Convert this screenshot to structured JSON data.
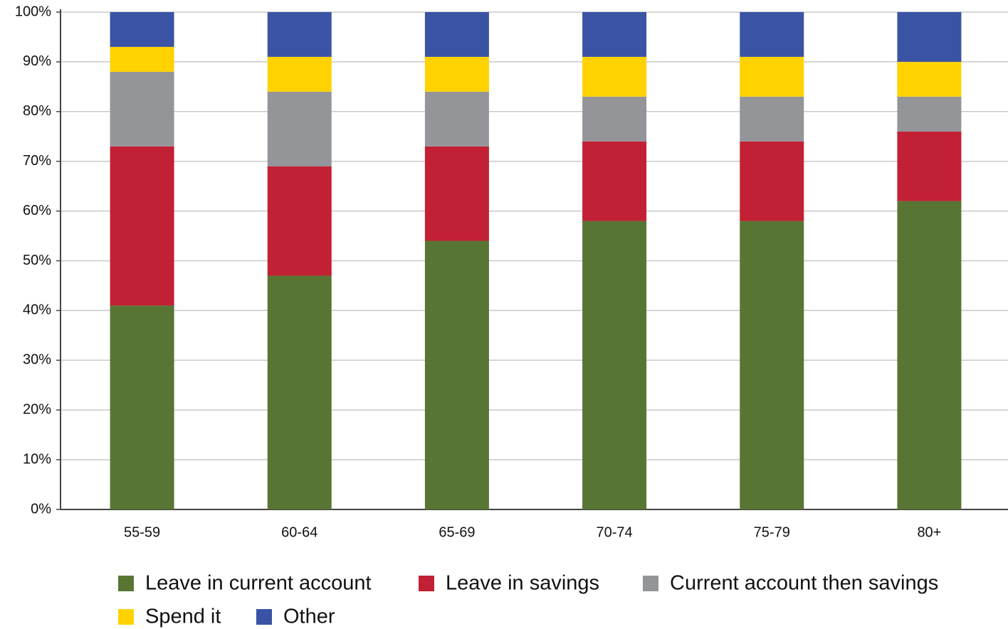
{
  "chart_data": {
    "type": "stacked_bar",
    "categories": [
      "55-59",
      "60-64",
      "65-69",
      "70-74",
      "75-79",
      "80+"
    ],
    "series": [
      {
        "name": "Leave in current account",
        "color": "#587533",
        "values": [
          41,
          47,
          54,
          58,
          58,
          62
        ]
      },
      {
        "name": "Leave in savings",
        "color": "#c22034",
        "values": [
          32,
          22,
          19,
          16,
          16,
          14
        ]
      },
      {
        "name": "Current account then savings",
        "color": "#939598",
        "values": [
          15,
          15,
          11,
          9,
          9,
          7
        ]
      },
      {
        "name": "Spend it",
        "color": "#ffd200",
        "values": [
          5,
          7,
          7,
          8,
          8,
          7
        ]
      },
      {
        "name": "Other",
        "color": "#3a53a4",
        "values": [
          7,
          9,
          9,
          9,
          9,
          10
        ]
      }
    ],
    "ylim": [
      0,
      100
    ],
    "yticks": [
      {
        "value": 0,
        "label": "0%"
      },
      {
        "value": 10,
        "label": "10%"
      },
      {
        "value": 20,
        "label": "20%"
      },
      {
        "value": 30,
        "label": "30%"
      },
      {
        "value": 40,
        "label": "40%"
      },
      {
        "value": 50,
        "label": "50%"
      },
      {
        "value": 60,
        "label": "60%"
      },
      {
        "value": 70,
        "label": "70%"
      },
      {
        "value": 80,
        "label": "80%"
      },
      {
        "value": 90,
        "label": "90%"
      },
      {
        "value": 100,
        "label": "100%"
      }
    ],
    "grid": true
  }
}
